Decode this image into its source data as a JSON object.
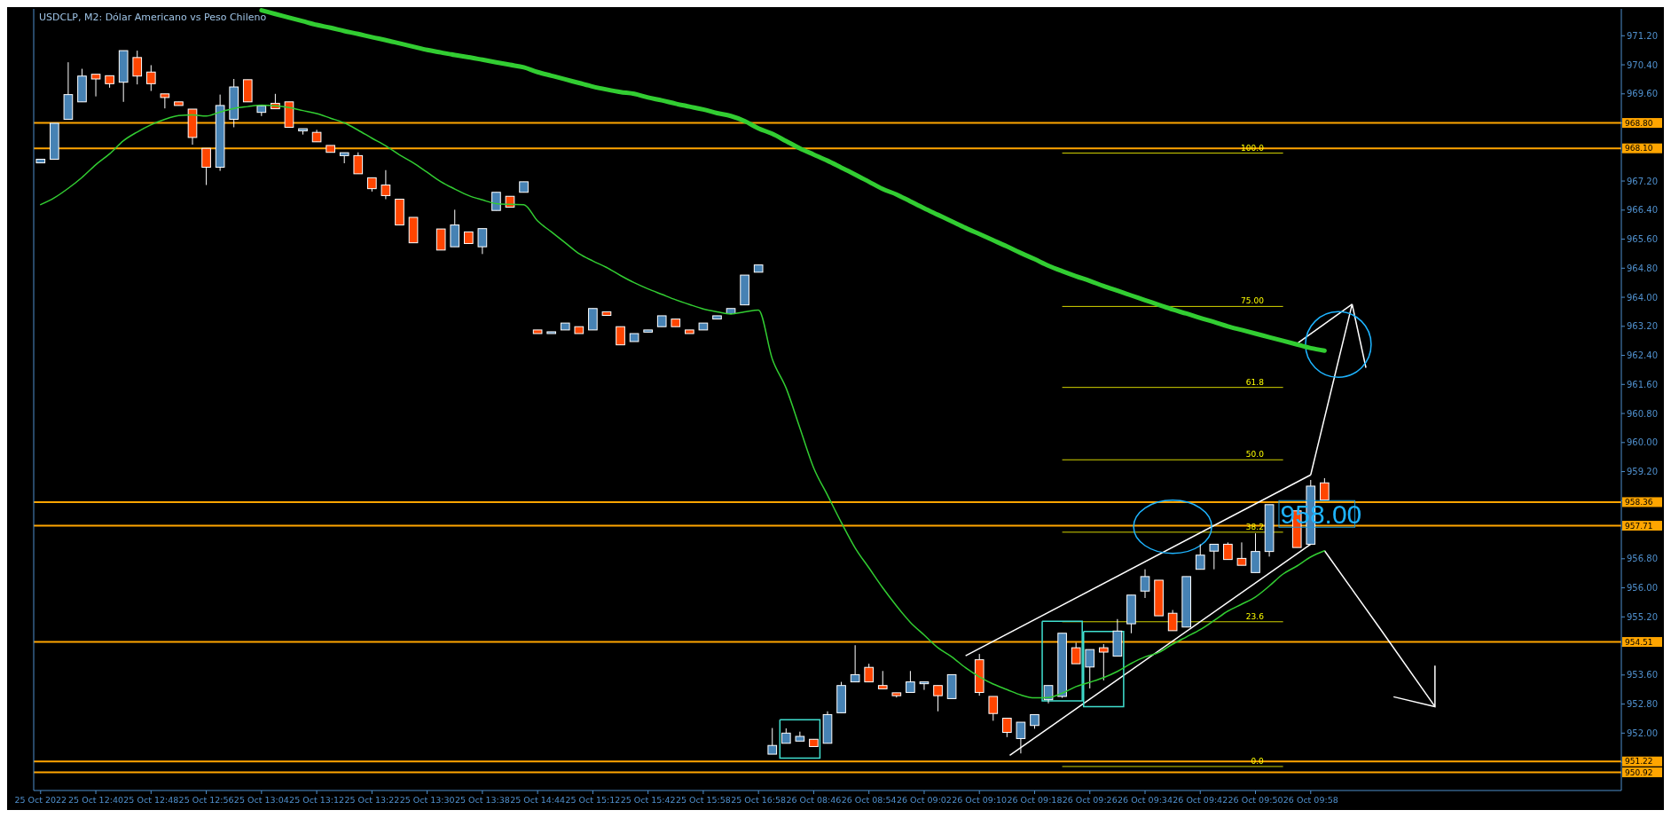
{
  "chart_data": {
    "type": "candlestick",
    "title": "USDCLP, M2:  Dólar Americano vs Peso Chileno",
    "categories": [
      "25 Oct 2022",
      null,
      null,
      null,
      "25 Oct 12:40",
      null,
      null,
      null,
      "25 Oct 12:48",
      null,
      null,
      null,
      "25 Oct 12:56",
      null,
      null,
      null,
      "25 Oct 13:04",
      null,
      null,
      null,
      "25 Oct 13:12",
      null,
      null,
      null,
      "25 Oct 13:22",
      null,
      null,
      null,
      "25 Oct 13:30",
      null,
      null,
      null,
      "25 Oct 13:38",
      null,
      null,
      null,
      "25 Oct 14:44",
      null,
      null,
      null,
      "25 Oct 15:12",
      null,
      null,
      null,
      "25 Oct 15:42",
      null,
      null,
      null,
      "25 Oct 15:58",
      null,
      null,
      null,
      "25 Oct 16:58",
      null,
      null,
      null,
      "26 Oct 08:46",
      null,
      null,
      null,
      "26 Oct 08:54",
      null,
      null,
      null,
      "26 Oct 09:02",
      null,
      null,
      null,
      "26 Oct 09:10",
      null,
      null,
      null,
      "26 Oct 09:18",
      null,
      null,
      null,
      "26 Oct 09:26",
      null,
      null,
      null,
      "26 Oct 09:34",
      null,
      null,
      null,
      "26 Oct 09:42",
      null,
      null,
      null,
      "26 Oct 09:50",
      null,
      null,
      null,
      "26 Oct 09:58",
      null,
      null,
      null,
      null,
      null,
      null,
      null,
      null,
      null,
      null,
      null,
      null,
      null,
      null,
      null,
      null,
      null,
      null,
      null,
      null,
      null,
      null
    ],
    "ohlc": [
      [
        967.7,
        967.8,
        967.7,
        967.8
      ],
      [
        967.8,
        968.79,
        967.8,
        968.79
      ],
      [
        968.9,
        970.47,
        968.9,
        969.58
      ],
      [
        969.38,
        970.29,
        969.38,
        970.09
      ],
      [
        970.14,
        970.14,
        969.53,
        970.01
      ],
      [
        970.1,
        970.1,
        969.77,
        969.88
      ],
      [
        969.92,
        970.79,
        969.38,
        970.79
      ],
      [
        970.6,
        970.79,
        969.86,
        970.09
      ],
      [
        970.2,
        970.39,
        969.68,
        969.88
      ],
      [
        969.6,
        969.6,
        969.2,
        969.5
      ],
      [
        969.38,
        969.38,
        969.28,
        969.28
      ],
      [
        969.18,
        969.18,
        968.2,
        968.4
      ],
      [
        968.1,
        968.1,
        967.09,
        967.58
      ],
      [
        967.58,
        969.58,
        967.48,
        969.28
      ],
      [
        968.9,
        970.01,
        968.68,
        969.79
      ],
      [
        969.99,
        969.99,
        969.38,
        969.38
      ],
      [
        969.09,
        969.27,
        968.99,
        969.27
      ],
      [
        969.34,
        969.6,
        969.19,
        969.19
      ],
      [
        969.38,
        969.38,
        968.68,
        968.68
      ],
      [
        968.58,
        968.64,
        968.48,
        968.64
      ],
      [
        968.54,
        968.61,
        968.28,
        968.28
      ],
      [
        968.18,
        968.18,
        967.99,
        967.99
      ],
      [
        967.9,
        967.98,
        967.69,
        967.98
      ],
      [
        967.9,
        967.99,
        967.4,
        967.4
      ],
      [
        967.29,
        967.29,
        966.91,
        966.99
      ],
      [
        967.09,
        967.5,
        966.7,
        966.8
      ],
      [
        966.7,
        966.7,
        965.99,
        965.99
      ],
      [
        966.2,
        966.2,
        965.5,
        965.5
      ],
      null,
      [
        965.88,
        965.88,
        965.3,
        965.3
      ],
      [
        965.39,
        966.41,
        965.39,
        965.99
      ],
      [
        965.8,
        965.8,
        965.48,
        965.48
      ],
      [
        965.39,
        965.89,
        965.19,
        965.89
      ],
      [
        966.39,
        966.89,
        966.39,
        966.89
      ],
      [
        966.78,
        966.78,
        966.48,
        966.48
      ],
      [
        966.89,
        967.18,
        966.89,
        967.18
      ],
      [
        963.1,
        963.1,
        963.0,
        963.0
      ],
      [
        963.0,
        963.05,
        963.0,
        963.05
      ],
      [
        963.1,
        963.29,
        963.1,
        963.29
      ],
      [
        963.19,
        963.19,
        963.0,
        963.0
      ],
      [
        963.1,
        963.69,
        963.1,
        963.69
      ],
      [
        963.6,
        963.6,
        963.5,
        963.5
      ],
      [
        963.19,
        963.19,
        962.69,
        962.69
      ],
      [
        962.78,
        963.0,
        962.78,
        963.0
      ],
      [
        963.04,
        963.1,
        963.04,
        963.1
      ],
      [
        963.19,
        963.49,
        963.19,
        963.49
      ],
      [
        963.4,
        963.4,
        963.19,
        963.19
      ],
      [
        963.1,
        963.1,
        963.0,
        963.0
      ],
      [
        963.1,
        963.29,
        963.1,
        963.29
      ],
      [
        963.4,
        963.49,
        963.4,
        963.49
      ],
      [
        963.55,
        963.69,
        963.55,
        963.69
      ],
      [
        963.79,
        964.61,
        963.79,
        964.61
      ],
      [
        964.69,
        964.89,
        964.69,
        964.89
      ],
      [
        951.42,
        952.14,
        951.42,
        951.66
      ],
      [
        951.72,
        952.13,
        951.72,
        952.0
      ],
      [
        951.78,
        952.04,
        951.78,
        951.91
      ],
      [
        951.83,
        951.83,
        951.63,
        951.63
      ],
      [
        951.72,
        952.6,
        951.72,
        952.51
      ],
      [
        952.56,
        953.41,
        952.56,
        953.31
      ],
      [
        953.41,
        954.42,
        953.41,
        953.61
      ],
      [
        953.81,
        953.91,
        953.41,
        953.41
      ],
      [
        953.31,
        953.71,
        953.22,
        953.22
      ],
      [
        953.11,
        953.11,
        952.98,
        953.03
      ],
      [
        953.12,
        953.71,
        953.12,
        953.41
      ],
      [
        953.36,
        953.41,
        953.19,
        953.41
      ],
      [
        953.31,
        953.31,
        952.6,
        953.03
      ],
      [
        952.95,
        953.61,
        952.95,
        953.61
      ],
      null,
      [
        954.02,
        954.18,
        953.03,
        953.12
      ],
      [
        953.01,
        953.01,
        952.34,
        952.54
      ],
      [
        952.41,
        952.41,
        951.89,
        952.02
      ],
      [
        951.85,
        952.3,
        951.44,
        952.3
      ],
      [
        952.21,
        952.51,
        952.12,
        952.51
      ],
      [
        952.92,
        953.31,
        952.82,
        953.31
      ],
      [
        953.01,
        954.75,
        952.97,
        954.75
      ],
      [
        954.35,
        954.49,
        953.91,
        953.91
      ],
      [
        953.82,
        954.3,
        953.23,
        954.3
      ],
      [
        954.35,
        954.45,
        953.45,
        954.23
      ],
      [
        954.12,
        955.14,
        954.12,
        954.81
      ],
      [
        955.01,
        955.8,
        954.75,
        955.8
      ],
      [
        955.91,
        956.51,
        955.72,
        956.31
      ],
      [
        956.21,
        956.21,
        955.23,
        955.23
      ],
      [
        955.3,
        955.39,
        954.82,
        954.82
      ],
      [
        954.92,
        956.31,
        954.92,
        956.31
      ],
      [
        956.51,
        957.2,
        956.51,
        956.9
      ],
      [
        957.01,
        957.2,
        956.51,
        957.2
      ],
      [
        957.2,
        957.25,
        956.78,
        956.78
      ],
      [
        956.81,
        957.25,
        956.62,
        956.62
      ],
      [
        956.42,
        957.5,
        956.42,
        957.0
      ],
      [
        957.0,
        958.29,
        956.86,
        958.29
      ],
      null,
      [
        958.12,
        958.12,
        957.11,
        957.11
      ],
      [
        957.2,
        958.97,
        957.2,
        958.8
      ],
      [
        958.89,
        959.02,
        958.42,
        958.42
      ],
      null,
      null,
      null,
      null,
      null,
      null,
      null,
      null,
      null,
      null,
      null,
      null,
      null,
      null,
      null,
      null,
      null,
      null,
      null,
      null,
      null
    ],
    "series": [
      {
        "type": "line",
        "color": "#32cd32",
        "values": [
          966.55,
          966.74,
          967.0,
          967.3,
          967.65,
          967.95,
          968.31,
          968.55,
          968.75,
          968.9,
          969.0,
          969.02,
          968.99,
          969.1,
          969.2,
          969.25,
          969.29,
          969.27,
          969.22,
          969.14,
          969.06,
          968.93,
          968.8,
          968.6,
          968.38,
          968.17,
          967.92,
          967.7,
          967.44,
          967.18,
          966.98,
          966.8,
          966.68,
          966.58,
          966.56,
          966.55,
          966.1,
          965.8,
          965.5,
          965.2,
          965.0,
          964.82,
          964.6,
          964.4,
          964.23,
          964.08,
          963.93,
          963.8,
          963.68,
          963.6,
          963.54,
          963.6,
          963.65,
          962.3,
          961.5,
          960.4,
          959.3,
          958.55,
          957.8,
          957.1,
          956.55,
          956.0,
          955.5,
          955.05,
          954.7,
          954.35,
          954.1,
          953.8,
          953.55,
          953.35,
          953.2,
          953.05,
          952.97,
          952.98,
          953.1,
          953.28,
          953.4,
          953.53,
          953.7,
          953.92,
          954.1,
          954.22,
          954.45,
          954.65,
          954.85,
          955.1,
          955.36,
          955.55,
          955.75,
          956.05,
          956.38,
          956.6,
          956.85,
          957.02,
          null,
          null,
          null,
          null,
          null,
          null,
          null,
          null,
          null,
          null,
          null,
          null,
          null,
          null,
          null,
          null,
          null,
          null,
          null,
          null,
          null
        ]
      },
      {
        "type": "line",
        "color": "#32cd32",
        "values": [
          null,
          null,
          null,
          null,
          null,
          null,
          null,
          null,
          null,
          null,
          null,
          null,
          null,
          null,
          null,
          null,
          971.9,
          971.8,
          971.7,
          971.6,
          971.5,
          971.42,
          971.33,
          971.25,
          971.16,
          971.08,
          970.99,
          970.9,
          970.81,
          970.74,
          970.67,
          970.61,
          970.54,
          970.47,
          970.4,
          970.33,
          970.2,
          970.1,
          970.0,
          969.9,
          969.8,
          969.72,
          969.65,
          969.6,
          969.5,
          969.42,
          969.33,
          969.25,
          969.17,
          969.07,
          968.99,
          968.85,
          968.65,
          968.5,
          968.3,
          968.1,
          967.93,
          967.76,
          967.57,
          967.38,
          967.18,
          966.98,
          966.83,
          966.64,
          966.45,
          966.27,
          966.09,
          965.91,
          965.74,
          965.57,
          965.4,
          965.22,
          965.05,
          964.87,
          964.72,
          964.58,
          964.45,
          964.31,
          964.18,
          964.05,
          963.92,
          963.79,
          963.66,
          963.55,
          963.43,
          963.32,
          963.2,
          963.1,
          963.0,
          962.9,
          962.8,
          962.7,
          962.6,
          962.53,
          null,
          null,
          null,
          null,
          null,
          null,
          null,
          null,
          null,
          null,
          null,
          null,
          null,
          null,
          null,
          null,
          null,
          null,
          null,
          null,
          null
        ]
      }
    ],
    "ylim": [
      950.42,
      971.94
    ],
    "yticks": [
      {
        "value": 971.2,
        "label": "971.20"
      },
      {
        "value": 970.4,
        "label": "970.40"
      },
      {
        "value": 969.6,
        "label": "969.60"
      },
      {
        "value": 968.8,
        "label": null
      },
      {
        "value": 968.0,
        "label": null
      },
      {
        "value": 967.2,
        "label": "967.20"
      },
      {
        "value": 966.4,
        "label": "966.40"
      },
      {
        "value": 965.6,
        "label": "965.60"
      },
      {
        "value": 964.8,
        "label": "964.80"
      },
      {
        "value": 964.0,
        "label": "964.00"
      },
      {
        "value": 963.2,
        "label": "963.20"
      },
      {
        "value": 962.4,
        "label": "962.40"
      },
      {
        "value": 961.6,
        "label": "961.60"
      },
      {
        "value": 960.8,
        "label": "960.80"
      },
      {
        "value": 960.0,
        "label": "960.00"
      },
      {
        "value": 959.2,
        "label": "959.20"
      },
      {
        "value": 958.4,
        "label": null
      },
      {
        "value": 957.6,
        "label": null
      },
      {
        "value": 956.8,
        "label": "956.80"
      },
      {
        "value": 956.0,
        "label": "956.00"
      },
      {
        "value": 955.2,
        "label": "955.20"
      },
      {
        "value": 954.4,
        "label": null
      },
      {
        "value": 953.6,
        "label": "953.60"
      },
      {
        "value": 952.8,
        "label": "952.80"
      },
      {
        "value": 952.0,
        "label": "952.00"
      },
      {
        "value": 951.2,
        "label": null
      }
    ],
    "ref_lines": [
      {
        "axis": "y",
        "value": 968.8,
        "label": "968.80",
        "color": "#ffa500"
      },
      {
        "axis": "y",
        "value": 968.1,
        "label": "968.10",
        "color": "#ffa500"
      },
      {
        "axis": "y",
        "value": 958.36,
        "label": "958.36",
        "color": "#ffa500"
      },
      {
        "axis": "y",
        "value": 957.71,
        "label": "957.71",
        "color": "#ffa500"
      },
      {
        "axis": "y",
        "value": 954.51,
        "label": "954.51",
        "color": "#ffa500"
      },
      {
        "axis": "y",
        "value": 951.22,
        "label": "951.22",
        "color": "#ffa500"
      },
      {
        "axis": "y",
        "value": 950.92,
        "label": "950.92",
        "color": "#ffa500"
      },
      {
        "axis": "y2",
        "value": 100,
        "label": "100.0",
        "color": "#d4d400"
      },
      {
        "axis": "y2",
        "value": 75,
        "label": "75.00",
        "color": "#d4d400"
      },
      {
        "axis": "y2",
        "value": 61.8,
        "label": "61.8",
        "color": "#d4d400"
      },
      {
        "axis": "y2",
        "value": 50,
        "label": "50.0",
        "color": "#d4d400"
      },
      {
        "axis": "y2",
        "value": 38.2,
        "label": "38.2",
        "color": "#d4d400"
      },
      {
        "axis": "y2",
        "value": 23.6,
        "label": "23.6",
        "color": "#d4d400"
      },
      {
        "axis": "y2",
        "value": 0,
        "label": "0.0",
        "color": "#d4d400"
      }
    ],
    "y2lim": [
      -3.91,
      123.51
    ],
    "annotations": [
      "958.00"
    ]
  }
}
